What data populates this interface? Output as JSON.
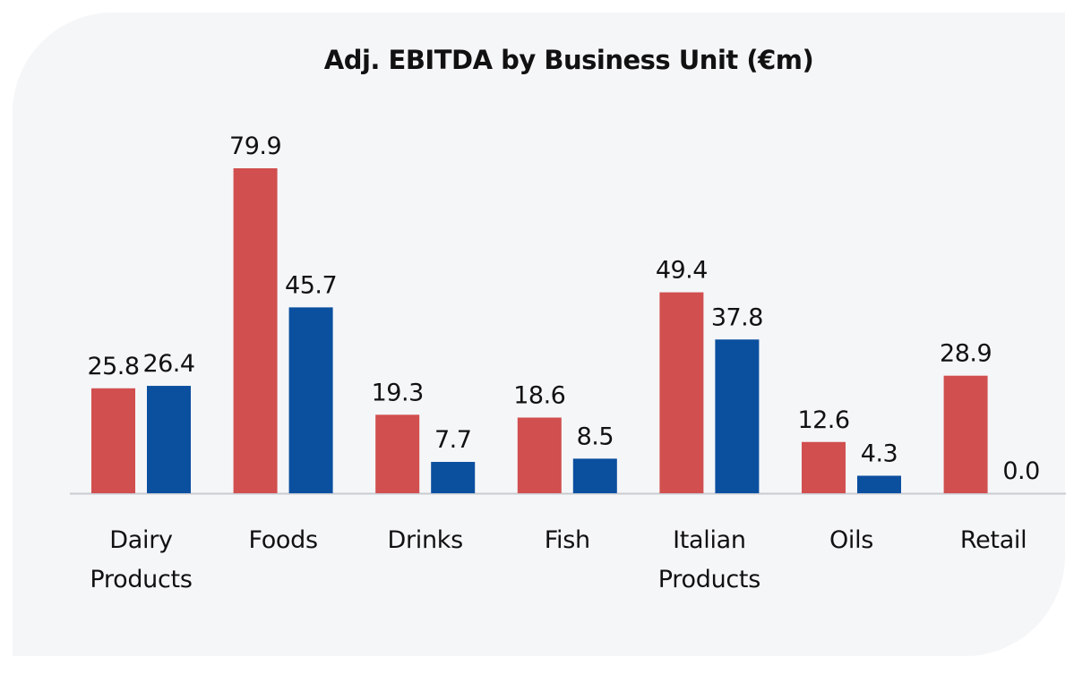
{
  "chart_data": {
    "type": "bar",
    "title": "Adj. EBITDA by Business Unit (€m)",
    "xlabel": "",
    "ylabel": "",
    "ylim": [
      0,
      80
    ],
    "grid": false,
    "legend": "none",
    "categories": [
      [
        "Dairy",
        "Products"
      ],
      [
        "Foods"
      ],
      [
        "Drinks"
      ],
      [
        "Fish"
      ],
      [
        "Italian",
        "Products"
      ],
      [
        "Oils"
      ],
      [
        "Retail"
      ]
    ],
    "series": [
      {
        "name": "Series 1",
        "color": "#d14f4f",
        "values": [
          25.8,
          79.9,
          19.3,
          18.6,
          49.4,
          12.6,
          28.9
        ],
        "labels": [
          "25.8",
          "79.9",
          "19.3",
          "18.6",
          "49.4",
          "12.6",
          "28.9"
        ]
      },
      {
        "name": "Series 2",
        "color": "#0b4f9f",
        "values": [
          26.4,
          45.7,
          7.7,
          8.5,
          37.8,
          4.3,
          0.0
        ],
        "labels": [
          "26.4",
          "45.7",
          "7.7",
          "8.5",
          "37.8",
          "4.3",
          "0.0"
        ]
      }
    ],
    "axis_color": "#c8cbd1"
  }
}
